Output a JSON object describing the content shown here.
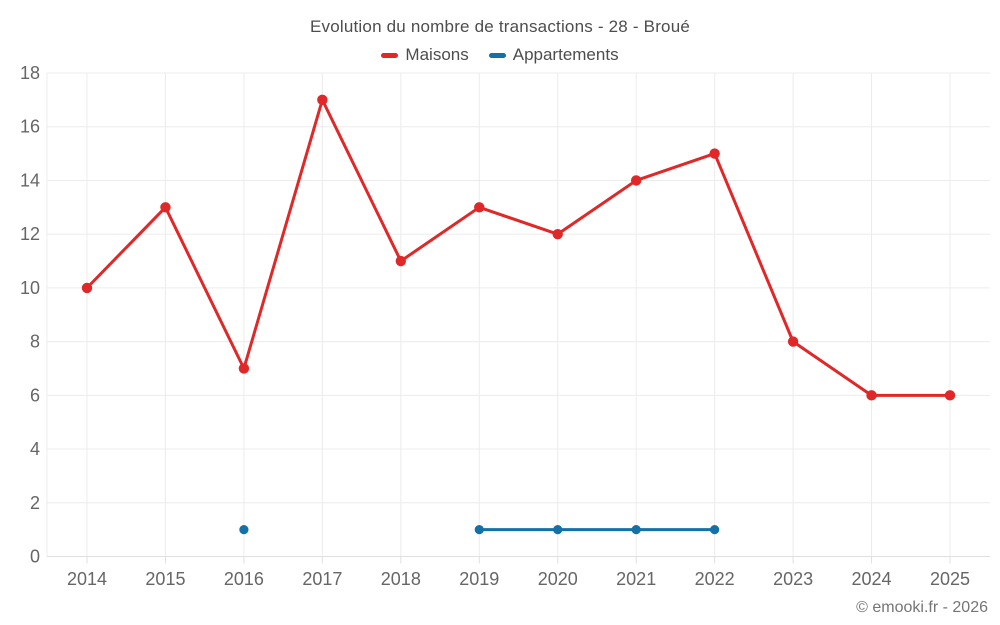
{
  "chart_data": {
    "type": "line",
    "title": "Evolution du nombre de transactions - 28 - Broué",
    "categories": [
      "2014",
      "2015",
      "2016",
      "2017",
      "2018",
      "2019",
      "2020",
      "2021",
      "2022",
      "2023",
      "2024",
      "2025"
    ],
    "series": [
      {
        "name": "Maisons",
        "color": "#e12828",
        "values": [
          10,
          13,
          7,
          17,
          11,
          13,
          12,
          14,
          15,
          8,
          6,
          6
        ],
        "marker_radius": 5.2,
        "line_width": 3
      },
      {
        "name": "Appartements",
        "color": "#1371a8",
        "values": [
          null,
          null,
          1,
          null,
          null,
          1,
          1,
          1,
          1,
          null,
          null,
          null
        ],
        "marker_radius": 4.6,
        "line_width": 3
      }
    ],
    "xlabel": "",
    "ylabel": "",
    "ylim": [
      0,
      18
    ],
    "ytick_step": 2,
    "grid": true,
    "legend_position": "top-center"
  },
  "footer": {
    "copyright": "© emooki.fr - 2026"
  },
  "colors": {
    "grid": "#ececec",
    "axis_line": "#e0e0e0",
    "tick_label": "#666666",
    "title_text": "#4d4d4d",
    "footer_text": "#757575",
    "background": "#ffffff"
  }
}
